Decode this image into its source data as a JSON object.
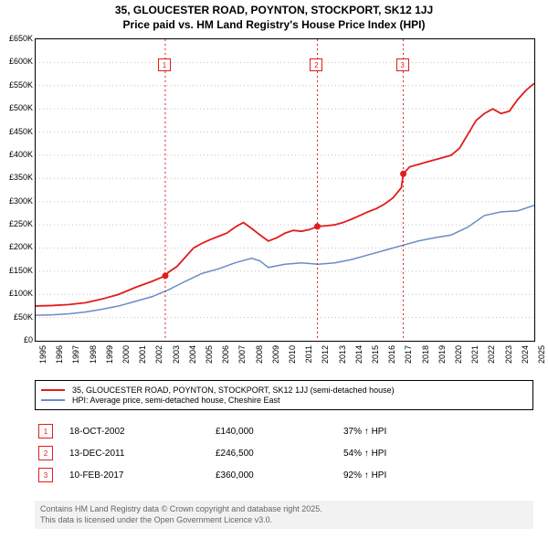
{
  "title_line1": "35, GLOUCESTER ROAD, POYNTON, STOCKPORT, SK12 1JJ",
  "title_line2": "Price paid vs. HM Land Registry's House Price Index (HPI)",
  "chart": {
    "type": "line",
    "background_color": "#ffffff",
    "grid_color": "#c0c0c0",
    "plot_border_color": "#000000",
    "x": {
      "min": 1995,
      "max": 2025,
      "ticks": [
        1995,
        1996,
        1997,
        1998,
        1999,
        2000,
        2001,
        2002,
        2003,
        2004,
        2005,
        2006,
        2007,
        2008,
        2009,
        2010,
        2011,
        2012,
        2013,
        2014,
        2015,
        2016,
        2017,
        2018,
        2019,
        2020,
        2021,
        2022,
        2023,
        2024,
        2025
      ]
    },
    "y": {
      "min": 0,
      "max": 650000,
      "step": 50000,
      "labels": [
        "£0",
        "£50K",
        "£100K",
        "£150K",
        "£200K",
        "£250K",
        "£300K",
        "£350K",
        "£400K",
        "£450K",
        "£500K",
        "£550K",
        "£600K",
        "£650K"
      ]
    },
    "series": [
      {
        "id": "property",
        "label": "35, GLOUCESTER ROAD, POYNTON, STOCKPORT, SK12 1JJ (semi-detached house)",
        "color": "#e21c1c",
        "width": 1.8,
        "points": [
          [
            1995,
            75000
          ],
          [
            1996,
            76000
          ],
          [
            1997,
            78000
          ],
          [
            1998,
            82000
          ],
          [
            1999,
            90000
          ],
          [
            2000,
            100000
          ],
          [
            2001,
            115000
          ],
          [
            2002,
            128000
          ],
          [
            2002.8,
            140000
          ],
          [
            2003,
            148000
          ],
          [
            2003.5,
            160000
          ],
          [
            2004,
            180000
          ],
          [
            2004.5,
            200000
          ],
          [
            2005,
            210000
          ],
          [
            2005.5,
            218000
          ],
          [
            2006,
            225000
          ],
          [
            2006.5,
            232000
          ],
          [
            2007,
            245000
          ],
          [
            2007.5,
            255000
          ],
          [
            2008,
            242000
          ],
          [
            2008.5,
            228000
          ],
          [
            2009,
            215000
          ],
          [
            2009.5,
            222000
          ],
          [
            2010,
            232000
          ],
          [
            2010.5,
            238000
          ],
          [
            2011,
            236000
          ],
          [
            2011.5,
            240000
          ],
          [
            2011.95,
            246500
          ],
          [
            2012.5,
            248000
          ],
          [
            2013,
            250000
          ],
          [
            2013.5,
            255000
          ],
          [
            2014,
            262000
          ],
          [
            2014.5,
            270000
          ],
          [
            2015,
            278000
          ],
          [
            2015.5,
            285000
          ],
          [
            2016,
            295000
          ],
          [
            2016.5,
            308000
          ],
          [
            2017,
            330000
          ],
          [
            2017.12,
            360000
          ],
          [
            2017.5,
            375000
          ],
          [
            2018,
            380000
          ],
          [
            2018.5,
            385000
          ],
          [
            2019,
            390000
          ],
          [
            2019.5,
            395000
          ],
          [
            2020,
            400000
          ],
          [
            2020.5,
            415000
          ],
          [
            2021,
            445000
          ],
          [
            2021.5,
            475000
          ],
          [
            2022,
            490000
          ],
          [
            2022.5,
            500000
          ],
          [
            2023,
            490000
          ],
          [
            2023.5,
            495000
          ],
          [
            2024,
            520000
          ],
          [
            2024.5,
            540000
          ],
          [
            2025,
            555000
          ]
        ]
      },
      {
        "id": "hpi",
        "label": "HPI: Average price, semi-detached house, Cheshire East",
        "color": "#6a8cc7",
        "width": 1.5,
        "points": [
          [
            1995,
            55000
          ],
          [
            1996,
            56000
          ],
          [
            1997,
            58000
          ],
          [
            1998,
            62000
          ],
          [
            1999,
            68000
          ],
          [
            2000,
            75000
          ],
          [
            2001,
            85000
          ],
          [
            2002,
            95000
          ],
          [
            2003,
            110000
          ],
          [
            2004,
            128000
          ],
          [
            2005,
            145000
          ],
          [
            2006,
            155000
          ],
          [
            2007,
            168000
          ],
          [
            2008,
            178000
          ],
          [
            2008.5,
            172000
          ],
          [
            2009,
            158000
          ],
          [
            2010,
            165000
          ],
          [
            2011,
            168000
          ],
          [
            2012,
            165000
          ],
          [
            2013,
            168000
          ],
          [
            2014,
            175000
          ],
          [
            2015,
            185000
          ],
          [
            2016,
            195000
          ],
          [
            2017,
            205000
          ],
          [
            2018,
            215000
          ],
          [
            2019,
            222000
          ],
          [
            2020,
            228000
          ],
          [
            2021,
            245000
          ],
          [
            2022,
            270000
          ],
          [
            2023,
            278000
          ],
          [
            2024,
            280000
          ],
          [
            2025,
            292000
          ]
        ]
      }
    ],
    "sale_markers": [
      {
        "n": "1",
        "year": 2002.8,
        "price": 140000
      },
      {
        "n": "2",
        "year": 2011.95,
        "price": 246500
      },
      {
        "n": "3",
        "year": 2017.12,
        "price": 360000
      }
    ]
  },
  "legend": [
    {
      "color": "#e21c1c",
      "label": "35, GLOUCESTER ROAD, POYNTON, STOCKPORT, SK12 1JJ (semi-detached house)"
    },
    {
      "color": "#6a8cc7",
      "label": "HPI: Average price, semi-detached house, Cheshire East"
    }
  ],
  "markers_table": [
    {
      "n": "1",
      "date": "18-OCT-2002",
      "price": "£140,000",
      "pct": "37% ↑ HPI"
    },
    {
      "n": "2",
      "date": "13-DEC-2011",
      "price": "£246,500",
      "pct": "54% ↑ HPI"
    },
    {
      "n": "3",
      "date": "10-FEB-2017",
      "price": "£360,000",
      "pct": "92% ↑ HPI"
    }
  ],
  "footer_line1": "Contains HM Land Registry data © Crown copyright and database right 2025.",
  "footer_line2": "This data is licensed under the Open Government Licence v3.0.",
  "footer_bg": "#f2f2f2",
  "footer_color": "#666666"
}
